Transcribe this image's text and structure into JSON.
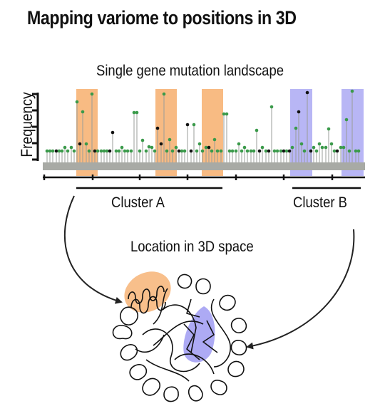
{
  "title": "Mapping variome to positions in 3D",
  "landscape_label": "Single gene mutation landscape",
  "y_axis_label": "Frequency",
  "cluster_a_label": "Cluster A",
  "cluster_b_label": "Cluster B",
  "structure_label": "Location in 3D space",
  "colors": {
    "cluster_a": "#f5a45a",
    "cluster_b": "#8a86f0",
    "protein_bar": "#a8aaa5",
    "mutation_green": "#3a9a4a",
    "mutation_black": "#111111",
    "mutation_red": "#d02020"
  },
  "icons": [
    "curved-arrow-icon",
    "protein-structure-icon"
  ]
}
